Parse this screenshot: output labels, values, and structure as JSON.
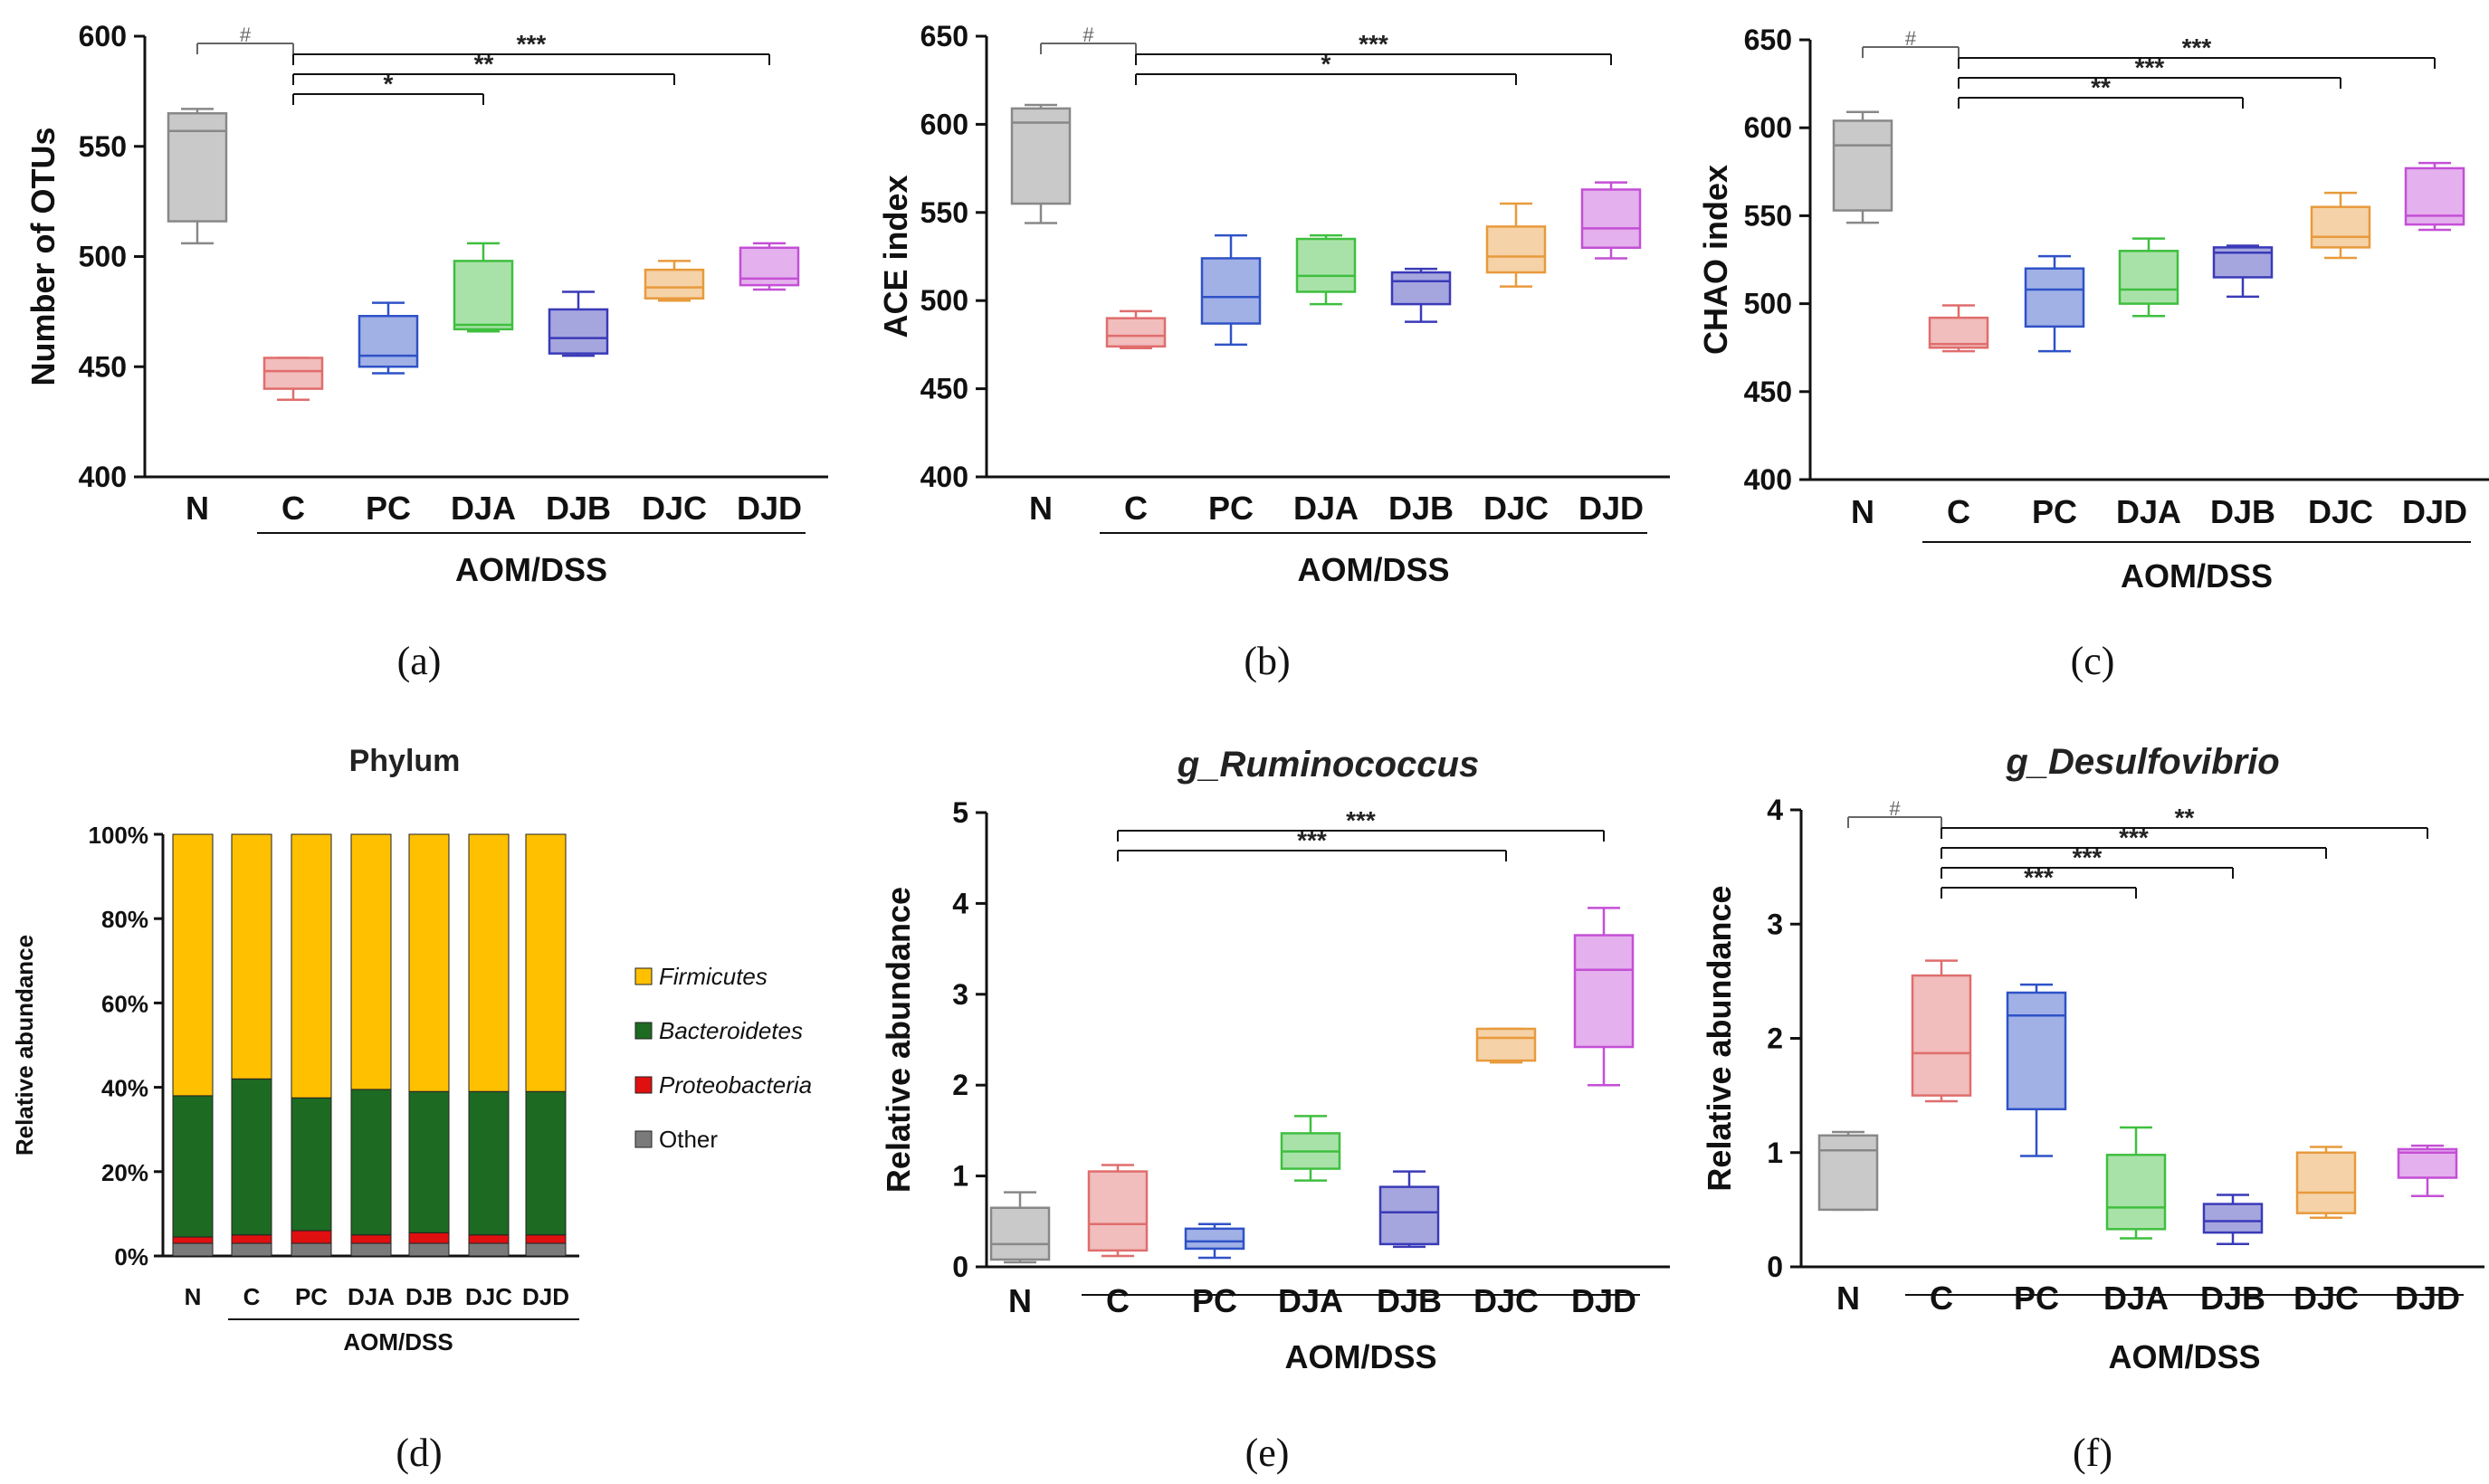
{
  "colors": {
    "N": "#888888",
    "C": "#e06d6d",
    "PC": "#2f52c8",
    "DJA": "#3fbf3f",
    "DJB": "#3a3ab8",
    "DJC": "#e89a3c",
    "DJD": "#c44fd6",
    "firmicutes": "#ffc000",
    "bacteroidetes": "#1d6a22",
    "proteobacteria": "#e01010",
    "other": "#7a7a7a"
  },
  "chart_data": [
    {
      "type": "box",
      "panel": "(a)",
      "ylabel": "Number of OTUs",
      "group_label": "AOM/DSS",
      "ylim": [
        400,
        600
      ],
      "yticks": [
        400,
        450,
        500,
        550,
        600
      ],
      "categories": [
        "N",
        "C",
        "PC",
        "DJA",
        "DJB",
        "DJC",
        "DJD"
      ],
      "boxes": [
        {
          "min": 506,
          "q1": 516,
          "median": 557,
          "q3": 565,
          "max": 567
        },
        {
          "min": 435,
          "q1": 440,
          "median": 448,
          "q3": 454,
          "max": 454
        },
        {
          "min": 447,
          "q1": 450,
          "median": 455,
          "q3": 473,
          "max": 479
        },
        {
          "min": 466,
          "q1": 467,
          "median": 469,
          "q3": 498,
          "max": 506
        },
        {
          "min": 455,
          "q1": 456,
          "median": 463,
          "q3": 476,
          "max": 484
        },
        {
          "min": 480,
          "q1": 481,
          "median": 486,
          "q3": 494,
          "max": 498
        },
        {
          "min": 485,
          "q1": 487,
          "median": 490,
          "q3": 504,
          "max": 506
        }
      ],
      "significance": [
        {
          "from": "N",
          "to": "C",
          "label": "#"
        },
        {
          "from": "C",
          "to": "DJA",
          "label": "*"
        },
        {
          "from": "C",
          "to": "DJC",
          "label": "**"
        },
        {
          "from": "C",
          "to": "DJD",
          "label": "***"
        }
      ]
    },
    {
      "type": "box",
      "panel": "(b)",
      "ylabel": "ACE index",
      "group_label": "AOM/DSS",
      "ylim": [
        400,
        650
      ],
      "yticks": [
        400,
        450,
        500,
        550,
        600,
        650
      ],
      "categories": [
        "N",
        "C",
        "PC",
        "DJA",
        "DJB",
        "DJC",
        "DJD"
      ],
      "boxes": [
        {
          "min": 544,
          "q1": 555,
          "median": 601,
          "q3": 609,
          "max": 611
        },
        {
          "min": 473,
          "q1": 474,
          "median": 480,
          "q3": 490,
          "max": 494
        },
        {
          "min": 475,
          "q1": 487,
          "median": 502,
          "q3": 524,
          "max": 537
        },
        {
          "min": 498,
          "q1": 505,
          "median": 514,
          "q3": 535,
          "max": 537
        },
        {
          "min": 488,
          "q1": 498,
          "median": 511,
          "q3": 516,
          "max": 518
        },
        {
          "min": 508,
          "q1": 516,
          "median": 525,
          "q3": 542,
          "max": 555
        },
        {
          "min": 524,
          "q1": 530,
          "median": 541,
          "q3": 563,
          "max": 567
        }
      ],
      "significance": [
        {
          "from": "N",
          "to": "C",
          "label": "#"
        },
        {
          "from": "C",
          "to": "DJC",
          "label": "*"
        },
        {
          "from": "C",
          "to": "DJD",
          "label": "***"
        }
      ]
    },
    {
      "type": "box",
      "panel": "(c)",
      "ylabel": "CHAO index",
      "group_label": "AOM/DSS",
      "ylim": [
        400,
        650
      ],
      "yticks": [
        400,
        450,
        500,
        550,
        600,
        650
      ],
      "categories": [
        "N",
        "C",
        "PC",
        "DJA",
        "DJB",
        "DJC",
        "DJD"
      ],
      "boxes": [
        {
          "min": 546,
          "q1": 553,
          "median": 590,
          "q3": 604,
          "max": 609
        },
        {
          "min": 473,
          "q1": 475,
          "median": 477,
          "q3": 492,
          "max": 499
        },
        {
          "min": 473,
          "q1": 487,
          "median": 508,
          "q3": 520,
          "max": 527
        },
        {
          "min": 493,
          "q1": 500,
          "median": 508,
          "q3": 530,
          "max": 537
        },
        {
          "min": 504,
          "q1": 515,
          "median": 529,
          "q3": 532,
          "max": 533
        },
        {
          "min": 526,
          "q1": 532,
          "median": 538,
          "q3": 555,
          "max": 563
        },
        {
          "min": 542,
          "q1": 545,
          "median": 550,
          "q3": 577,
          "max": 580
        }
      ],
      "significance": [
        {
          "from": "N",
          "to": "C",
          "label": "#"
        },
        {
          "from": "C",
          "to": "DJB",
          "label": "**"
        },
        {
          "from": "C",
          "to": "DJC",
          "label": "***"
        },
        {
          "from": "C",
          "to": "DJD",
          "label": "***"
        }
      ]
    },
    {
      "type": "stacked_bar",
      "panel": "(d)",
      "title": "Phylum",
      "ylabel": "Relative abundance",
      "group_label": "AOM/DSS",
      "ylim": [
        0,
        100
      ],
      "yticks": [
        "0%",
        "20%",
        "40%",
        "60%",
        "80%",
        "100%"
      ],
      "categories": [
        "N",
        "C",
        "PC",
        "DJA",
        "DJB",
        "DJC",
        "DJD"
      ],
      "series": [
        {
          "name": "Other",
          "key": "other",
          "values": [
            3,
            3,
            3,
            3,
            3,
            3,
            3
          ]
        },
        {
          "name": "Proteobacteria",
          "key": "proteobacteria",
          "values": [
            1.5,
            2,
            3,
            2,
            2.5,
            2,
            2
          ]
        },
        {
          "name": "Bacteroidetes",
          "key": "bacteroidetes",
          "values": [
            33.5,
            37,
            31.5,
            34.5,
            33.5,
            34,
            34
          ]
        },
        {
          "name": "Firmicutes",
          "key": "firmicutes",
          "values": [
            62,
            58,
            62.5,
            60.5,
            61,
            61,
            61
          ]
        }
      ],
      "legend": [
        "Firmicutes",
        "Bacteroidetes",
        "Proteobacteria",
        "Other"
      ]
    },
    {
      "type": "box",
      "panel": "(e)",
      "title": "g_Ruminococcus",
      "ylabel": "Relative abundance",
      "group_label": "AOM/DSS",
      "ylim": [
        0,
        5
      ],
      "yticks": [
        0,
        1,
        2,
        3,
        4,
        5
      ],
      "categories": [
        "N",
        "C",
        "PC",
        "DJA",
        "DJB",
        "DJC",
        "DJD"
      ],
      "boxes": [
        {
          "min": 0.05,
          "q1": 0.08,
          "median": 0.25,
          "q3": 0.65,
          "max": 0.82
        },
        {
          "min": 0.12,
          "q1": 0.18,
          "median": 0.47,
          "q3": 1.05,
          "max": 1.12
        },
        {
          "min": 0.1,
          "q1": 0.2,
          "median": 0.28,
          "q3": 0.42,
          "max": 0.47
        },
        {
          "min": 0.95,
          "q1": 1.08,
          "median": 1.27,
          "q3": 1.47,
          "max": 1.66
        },
        {
          "min": 0.22,
          "q1": 0.25,
          "median": 0.6,
          "q3": 0.88,
          "max": 1.05
        },
        {
          "min": 2.25,
          "q1": 2.27,
          "median": 2.52,
          "q3": 2.62,
          "max": 2.62
        },
        {
          "min": 2.0,
          "q1": 2.42,
          "median": 3.27,
          "q3": 3.65,
          "max": 3.95
        }
      ],
      "significance": [
        {
          "from": "C",
          "to": "DJC",
          "label": "***"
        },
        {
          "from": "C",
          "to": "DJD",
          "label": "***"
        }
      ]
    },
    {
      "type": "box",
      "panel": "(f)",
      "title": "g_Desulfovibrio",
      "ylabel": "Relative abundance",
      "group_label": "AOM/DSS",
      "ylim": [
        0,
        4
      ],
      "yticks": [
        0,
        1,
        2,
        3,
        4
      ],
      "categories": [
        "N",
        "C",
        "PC",
        "DJA",
        "DJB",
        "DJC",
        "DJD"
      ],
      "boxes": [
        {
          "min": 0.5,
          "q1": 0.5,
          "median": 1.02,
          "q3": 1.15,
          "max": 1.18
        },
        {
          "min": 1.45,
          "q1": 1.5,
          "median": 1.87,
          "q3": 2.55,
          "max": 2.68
        },
        {
          "min": 0.97,
          "q1": 1.38,
          "median": 2.2,
          "q3": 2.4,
          "max": 2.47
        },
        {
          "min": 0.25,
          "q1": 0.33,
          "median": 0.52,
          "q3": 0.98,
          "max": 1.22
        },
        {
          "min": 0.2,
          "q1": 0.3,
          "median": 0.4,
          "q3": 0.55,
          "max": 0.63
        },
        {
          "min": 0.43,
          "q1": 0.47,
          "median": 0.65,
          "q3": 1.0,
          "max": 1.05
        },
        {
          "min": 0.62,
          "q1": 0.78,
          "median": 1.0,
          "q3": 1.03,
          "max": 1.06
        }
      ],
      "significance": [
        {
          "from": "N",
          "to": "C",
          "label": "#"
        },
        {
          "from": "C",
          "to": "DJA",
          "label": "***"
        },
        {
          "from": "C",
          "to": "DJB",
          "label": "***"
        },
        {
          "from": "C",
          "to": "DJC",
          "label": "***"
        },
        {
          "from": "C",
          "to": "DJD",
          "label": "**"
        }
      ]
    }
  ]
}
